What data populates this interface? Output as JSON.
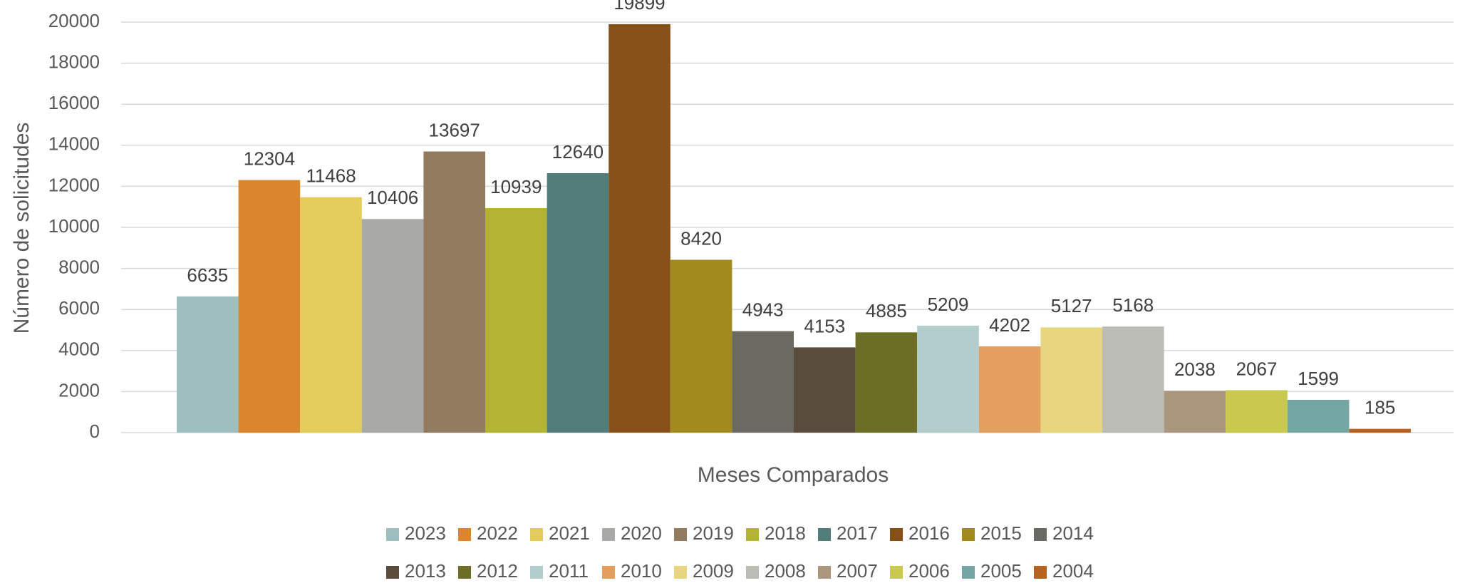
{
  "chart_data": {
    "type": "bar",
    "xlabel": "Meses Comparados",
    "ylabel": "Número de solicitudes",
    "categories": [
      null
    ],
    "series": [
      {
        "name": "2023",
        "color": "#9dbfbf",
        "values": [
          6635
        ]
      },
      {
        "name": "2022",
        "color": "#d9862f",
        "values": [
          12304
        ]
      },
      {
        "name": "2021",
        "color": "#e3cc5b",
        "values": [
          11468
        ]
      },
      {
        "name": "2020",
        "color": "#a9a9a5",
        "values": [
          10406
        ]
      },
      {
        "name": "2019",
        "color": "#937b60",
        "values": [
          13697
        ]
      },
      {
        "name": "2018",
        "color": "#b4b334",
        "values": [
          10939
        ]
      },
      {
        "name": "2017",
        "color": "#517c79",
        "values": [
          12640
        ]
      },
      {
        "name": "2016",
        "color": "#865017",
        "values": [
          19899
        ]
      },
      {
        "name": "2015",
        "color": "#a38a1e",
        "values": [
          8420
        ]
      },
      {
        "name": "2014",
        "color": "#6a6a62",
        "values": [
          4943
        ]
      },
      {
        "name": "2013",
        "color": "#5a4c3c",
        "values": [
          4153
        ]
      },
      {
        "name": "2012",
        "color": "#6b6e24",
        "values": [
          4885
        ]
      },
      {
        "name": "2011",
        "color": "#b3cdcd",
        "values": [
          5209
        ]
      },
      {
        "name": "2010",
        "color": "#e49f5e",
        "values": [
          4202
        ]
      },
      {
        "name": "2009",
        "color": "#e8d57f",
        "values": [
          5127
        ]
      },
      {
        "name": "2008",
        "color": "#bdbdb7",
        "values": [
          5168
        ]
      },
      {
        "name": "2007",
        "color": "#ab977e",
        "values": [
          2038
        ]
      },
      {
        "name": "2006",
        "color": "#c9c94f",
        "values": [
          2067
        ]
      },
      {
        "name": "2005",
        "color": "#74a6a3",
        "values": [
          1599
        ]
      },
      {
        "name": "2004",
        "color": "#b9621f",
        "values": [
          185
        ]
      }
    ],
    "ylim": [
      0,
      20000
    ],
    "yticks": [
      0,
      2000,
      4000,
      6000,
      8000,
      10000,
      12000,
      14000,
      16000,
      18000,
      20000
    ],
    "grid": true,
    "legend": "bottom"
  }
}
